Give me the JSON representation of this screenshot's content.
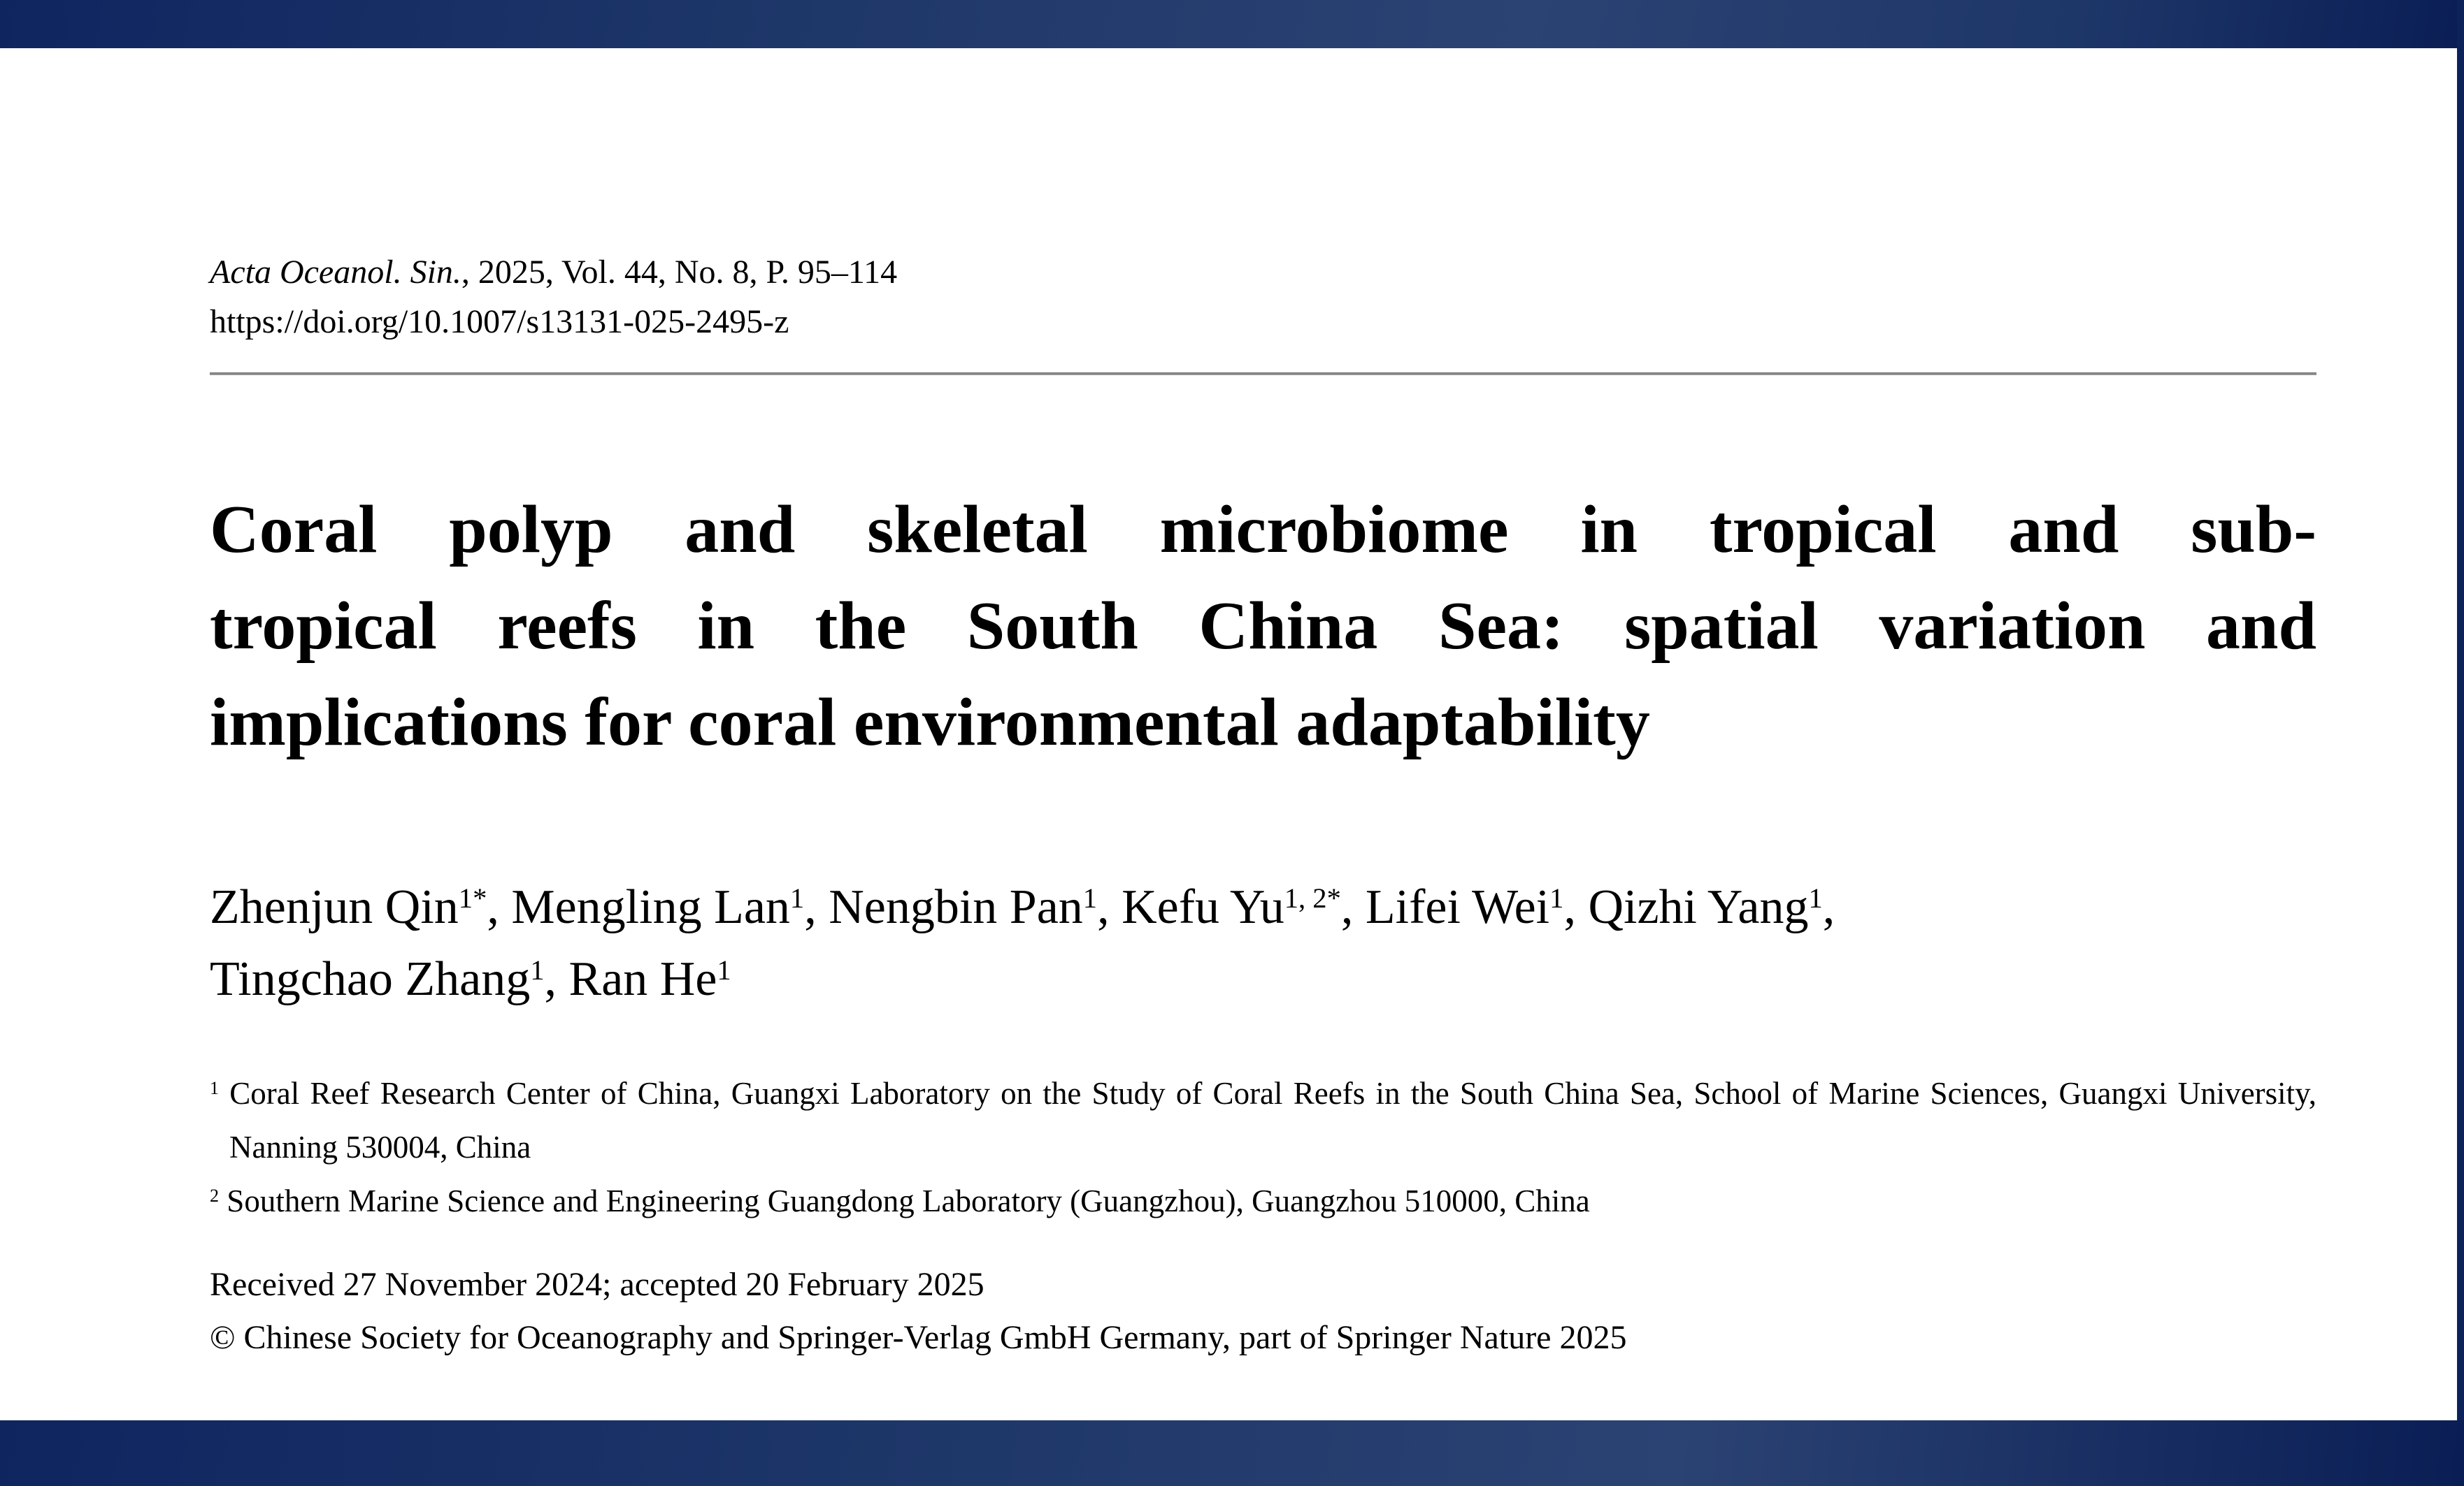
{
  "header": {
    "journal_italic": "Acta Oceanol. Sin.",
    "journal_rest": ", 2025, Vol. 44, No. 8, P. 95–114",
    "doi": "https://doi.org/10.1007/s13131-025-2495-z"
  },
  "title": {
    "lines": [
      "Coral polyp and skeletal microbiome in tropical and sub-",
      "tropical reefs in the South China Sea: spatial variation and",
      "implications for coral environmental adaptability"
    ]
  },
  "authors": [
    {
      "name": "Zhenjun Qin",
      "sup": "1*"
    },
    {
      "name": "Mengling Lan",
      "sup": "1"
    },
    {
      "name": "Nengbin Pan",
      "sup": "1"
    },
    {
      "name": "Kefu Yu",
      "sup": "1, 2*"
    },
    {
      "name": "Lifei Wei",
      "sup": "1"
    },
    {
      "name": "Qizhi Yang",
      "sup": "1",
      "line_break_after": true
    },
    {
      "name": "Tingchao Zhang",
      "sup": "1"
    },
    {
      "name": "Ran He",
      "sup": "1"
    }
  ],
  "affiliations": [
    {
      "sup": "1",
      "text": "Coral Reef Research Center of China, Guangxi Laboratory on the Study of Coral Reefs in the South China Sea, School of Marine Sciences, Guangxi University, Nanning 530004, China"
    },
    {
      "sup": "2",
      "text": "Southern Marine Science and Engineering Guangdong Laboratory (Guangzhou), Guangzhou 510000, China"
    }
  ],
  "footer": {
    "received": "Received 27 November 2024; accepted 20 February 2025",
    "copyright": "© Chinese Society for Oceanography and Springer-Verlag GmbH Germany, part of Springer Nature 2025"
  },
  "colors": {
    "navy_deep": "#0f2560",
    "navy_mid": "#1e3769",
    "navy_light": "#2b4373",
    "navy_dark": "#0a1e55",
    "navy_edge": "#0d2259",
    "rule_gray": "#9d9d9d",
    "text": "#000000",
    "page_bg": "#ffffff"
  }
}
